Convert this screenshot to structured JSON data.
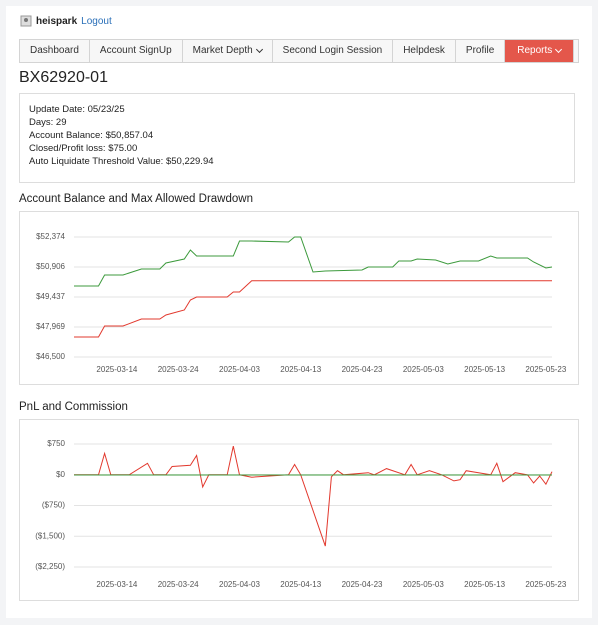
{
  "header": {
    "user": "heispark",
    "logout": "Logout"
  },
  "nav": [
    "Dashboard",
    "Account SignUp",
    "Market Depth",
    "Second Login Session",
    "Helpdesk",
    "Profile",
    "Reports"
  ],
  "account": {
    "id": "BX62920-01",
    "lines": [
      "Update Date: 05/23/25",
      "Days: 29",
      "Account Balance: $50,857.04",
      "Closed/Profit loss: $75.00",
      "Auto Liquidate Threshold Value: $50,229.94"
    ]
  },
  "chart_data": [
    {
      "type": "line",
      "title": "Account Balance and Max Allowed Drawdown",
      "x": [
        "2025-03-07",
        "2025-03-11",
        "2025-03-12",
        "2025-03-15",
        "2025-03-18",
        "2025-03-21",
        "2025-03-22",
        "2025-03-25",
        "2025-03-26",
        "2025-03-27",
        "2025-04-01",
        "2025-04-02",
        "2025-04-03",
        "2025-04-05",
        "2025-04-11",
        "2025-04-12",
        "2025-04-13",
        "2025-04-15",
        "2025-04-17",
        "2025-04-23",
        "2025-04-24",
        "2025-04-28",
        "2025-04-29",
        "2025-05-01",
        "2025-05-02",
        "2025-05-05",
        "2025-05-07",
        "2025-05-09",
        "2025-05-12",
        "2025-05-14",
        "2025-05-15",
        "2025-05-20",
        "2025-05-21",
        "2025-05-23",
        "2025-05-24"
      ],
      "series": [
        {
          "name": "Account Balance",
          "color": "#3c9a3c",
          "values": [
            49976,
            49976,
            50514,
            50514,
            50808,
            50808,
            51102,
            51298,
            51738,
            51444,
            51444,
            51444,
            52179,
            52179,
            52130,
            52374,
            52374,
            50661,
            50710,
            50759,
            50906,
            50906,
            51200,
            51200,
            51298,
            51249,
            51053,
            51200,
            51200,
            51444,
            51347,
            51347,
            51151,
            50857.04,
            50906
          ]
        },
        {
          "name": "Max Allowed Drawdown",
          "color": "#e2382d",
          "values": [
            47480,
            47480,
            48018,
            48018,
            48360,
            48360,
            48556,
            48801,
            49290,
            49437,
            49437,
            49682,
            49682,
            50229.94,
            50229.94,
            50229.94,
            50229.94,
            50229.94,
            50229.94,
            50229.94,
            50229.94,
            50229.94,
            50229.94,
            50229.94,
            50229.94,
            50229.94,
            50229.94,
            50229.94,
            50229.94,
            50229.94,
            50229.94,
            50229.94,
            50229.94,
            50229.94,
            50229.94
          ]
        }
      ],
      "xlim": [
        "2025-03-07",
        "2025-05-24"
      ],
      "xticks": [
        "2025-03-14",
        "2025-03-24",
        "2025-04-03",
        "2025-04-13",
        "2025-04-23",
        "2025-05-03",
        "2025-05-13",
        "2025-05-23"
      ],
      "ylim": [
        46500,
        52374
      ],
      "yticks": [
        {
          "value": 46500,
          "label": "$46,500"
        },
        {
          "value": 47969,
          "label": "$47,969"
        },
        {
          "value": 49437,
          "label": "$49,437"
        },
        {
          "value": 50906,
          "label": "$50,906"
        },
        {
          "value": 52374,
          "label": "$52,374"
        }
      ],
      "grid": true
    },
    {
      "type": "line",
      "title": "PnL and Commission",
      "x": [
        "2025-03-07",
        "2025-03-11",
        "2025-03-12",
        "2025-03-13",
        "2025-03-16",
        "2025-03-19",
        "2025-03-20",
        "2025-03-22",
        "2025-03-23",
        "2025-03-26",
        "2025-03-27",
        "2025-03-28",
        "2025-03-29",
        "2025-04-01",
        "2025-04-02",
        "2025-04-03",
        "2025-04-05",
        "2025-04-11",
        "2025-04-12",
        "2025-04-13",
        "2025-04-17",
        "2025-04-18",
        "2025-04-19",
        "2025-04-20",
        "2025-04-24",
        "2025-04-25",
        "2025-04-27",
        "2025-04-30",
        "2025-05-01",
        "2025-05-02",
        "2025-05-04",
        "2025-05-06",
        "2025-05-08",
        "2025-05-09",
        "2025-05-10",
        "2025-05-12",
        "2025-05-14",
        "2025-05-15",
        "2025-05-16",
        "2025-05-18",
        "2025-05-20",
        "2025-05-21",
        "2025-05-22",
        "2025-05-23",
        "2025-05-24"
      ],
      "series": [
        {
          "name": "PnL",
          "color": "#e2382d",
          "values": [
            0,
            0,
            520,
            0,
            0,
            280,
            0,
            0,
            200,
            230,
            470,
            -300,
            0,
            0,
            700,
            0,
            -60,
            0,
            250,
            0,
            -1740,
            -50,
            100,
            0,
            50,
            0,
            150,
            0,
            250,
            0,
            100,
            0,
            -150,
            -120,
            100,
            50,
            0,
            280,
            -170,
            50,
            0,
            -200,
            -30,
            -230,
            75
          ]
        },
        {
          "name": "Commission",
          "color": "#3c9a3c",
          "values": [
            -5,
            -5,
            -5,
            -5,
            -5,
            -5,
            -5,
            -5,
            -5,
            -5,
            -5,
            -5,
            -5,
            -5,
            -5,
            -5,
            -5,
            -5,
            -5,
            -5,
            -5,
            -5,
            -5,
            -5,
            -5,
            -5,
            -5,
            -5,
            -5,
            -5,
            -5,
            -5,
            -5,
            -5,
            -5,
            -5,
            -5,
            -5,
            -5,
            -5,
            -5,
            -5,
            -5,
            -5,
            -5
          ]
        }
      ],
      "xlim": [
        "2025-03-07",
        "2025-05-24"
      ],
      "xticks": [
        "2025-03-14",
        "2025-03-24",
        "2025-04-03",
        "2025-04-13",
        "2025-04-23",
        "2025-05-03",
        "2025-05-13",
        "2025-05-23"
      ],
      "ylim": [
        -2250,
        750
      ],
      "yticks": [
        {
          "value": -2250,
          "label": "($2,250)"
        },
        {
          "value": -1500,
          "label": "($1,500)"
        },
        {
          "value": -750,
          "label": "($750)"
        },
        {
          "value": 0,
          "label": "$0"
        },
        {
          "value": 750,
          "label": "$750"
        }
      ],
      "grid": true
    }
  ]
}
